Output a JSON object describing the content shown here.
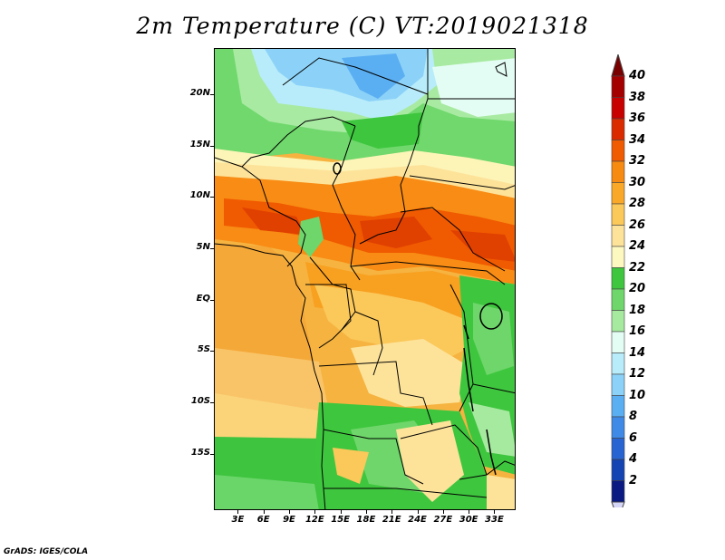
{
  "title": "2m Temperature (C) VT:2019021318",
  "footer": "GrADS: IGES/COLA",
  "axes": {
    "y_labels": [
      {
        "text": "20N",
        "lat": 20
      },
      {
        "text": "15N",
        "lat": 15
      },
      {
        "text": "10N",
        "lat": 10
      },
      {
        "text": "5N",
        "lat": 5
      },
      {
        "text": "EQ",
        "lat": 0
      },
      {
        "text": "5S",
        "lat": -5
      },
      {
        "text": "10S",
        "lat": -10
      },
      {
        "text": "15S",
        "lat": -15
      }
    ],
    "x_labels": [
      {
        "text": "3E",
        "lon": 3
      },
      {
        "text": "6E",
        "lon": 6
      },
      {
        "text": "9E",
        "lon": 9
      },
      {
        "text": "12E",
        "lon": 12
      },
      {
        "text": "15E",
        "lon": 15
      },
      {
        "text": "18E",
        "lon": 18
      },
      {
        "text": "21E",
        "lon": 21
      },
      {
        "text": "24E",
        "lon": 24
      },
      {
        "text": "27E",
        "lon": 27
      },
      {
        "text": "30E",
        "lon": 30
      },
      {
        "text": "33E",
        "lon": 33
      }
    ],
    "lon_range": [
      0.2,
      35.5
    ],
    "lat_range": [
      -20.5,
      24.5
    ]
  },
  "colorbar": {
    "labels": [
      "40",
      "38",
      "36",
      "34",
      "32",
      "30",
      "28",
      "26",
      "24",
      "22",
      "20",
      "18",
      "16",
      "14",
      "12",
      "10",
      "8",
      "6",
      "4",
      "2"
    ],
    "colors_top_to_bottom": [
      "#a50000",
      "#c80000",
      "#dc2a00",
      "#f05a00",
      "#f78a10",
      "#faa828",
      "#fbc85a",
      "#fde39a",
      "#fdf8c0",
      "#3ec63e",
      "#6ed66a",
      "#a6eaa0",
      "#e4fdf4",
      "#b8ecfa",
      "#8cd2f8",
      "#5aaef2",
      "#3e8ae6",
      "#2864d2",
      "#1444b4",
      "#0a1a82"
    ],
    "top_arrow_color": "#7a0000",
    "bottom_arrow_color": "#d6d6f8"
  }
}
